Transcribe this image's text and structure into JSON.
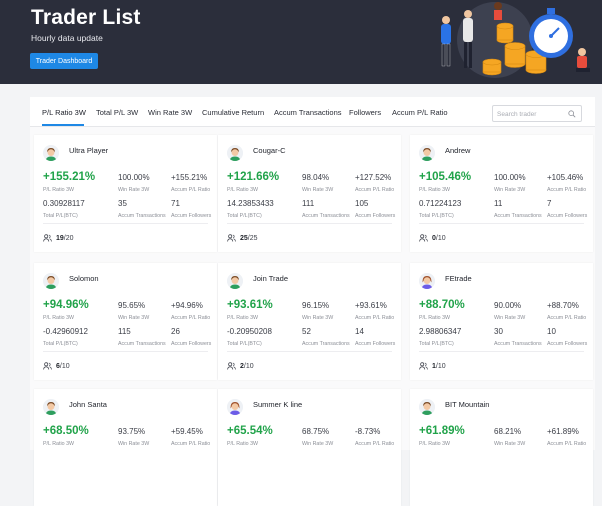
{
  "header": {
    "title": "Trader List",
    "subtitle": "Hourly data update",
    "dashboard_button": "Trader Dashboard"
  },
  "tabs": [
    {
      "label": "P/L Ratio 3W",
      "active": true
    },
    {
      "label": "Total P/L 3W"
    },
    {
      "label": "Win Rate 3W"
    },
    {
      "label": "Cumulative Return"
    },
    {
      "label": "Accum Transactions"
    },
    {
      "label": "Followers"
    },
    {
      "label": "Accum P/L Ratio"
    }
  ],
  "search": {
    "placeholder": "Search trader"
  },
  "labels": {
    "pl_ratio": "P/L Ratio 3W",
    "win_rate": "Win Rate 3W",
    "accum_pl": "Accum P/L Ratio",
    "total_pl": "Total P/L(BTC)",
    "accum_tx": "Accum Transactions",
    "accum_followers": "Accum Followers"
  },
  "colors": {
    "positive": "#21a34a",
    "accent": "#1e88e5",
    "hero_bg": "#2b2e3b"
  },
  "traders": [
    {
      "name": "Ultra Player",
      "pl_ratio": "+155.21%",
      "win_rate": "100.00%",
      "accum_pl": "+155.21%",
      "total_pl": "0.30928117",
      "transactions": "35",
      "followers": "71",
      "slots_used": "19",
      "slots_total": "/20",
      "avatar": "male"
    },
    {
      "name": "Cougar-C",
      "pl_ratio": "+121.66%",
      "win_rate": "98.04%",
      "accum_pl": "+127.52%",
      "total_pl": "14.23853433",
      "transactions": "111",
      "followers": "105",
      "slots_used": "25",
      "slots_total": "/25",
      "avatar": "male"
    },
    {
      "name": "Andrew",
      "pl_ratio": "+105.46%",
      "win_rate": "100.00%",
      "accum_pl": "+105.46%",
      "total_pl": "0.71224123",
      "transactions": "11",
      "followers": "7",
      "slots_used": "0",
      "slots_total": "/10",
      "avatar": "male"
    },
    {
      "name": "Solomon",
      "pl_ratio": "+94.96%",
      "win_rate": "95.65%",
      "accum_pl": "+94.96%",
      "total_pl": "-0.42960912",
      "transactions": "115",
      "followers": "26",
      "slots_used": "6",
      "slots_total": "/10",
      "avatar": "male"
    },
    {
      "name": "Join Trade",
      "pl_ratio": "+93.61%",
      "win_rate": "96.15%",
      "accum_pl": "+93.61%",
      "total_pl": "-0.20950208",
      "transactions": "52",
      "followers": "14",
      "slots_used": "2",
      "slots_total": "/10",
      "avatar": "male"
    },
    {
      "name": "FEtrade",
      "pl_ratio": "+88.70%",
      "win_rate": "90.00%",
      "accum_pl": "+88.70%",
      "total_pl": "2.98806347",
      "transactions": "30",
      "followers": "10",
      "slots_used": "1",
      "slots_total": "/10",
      "avatar": "female"
    },
    {
      "name": "John Santa",
      "pl_ratio": "+68.50%",
      "win_rate": "93.75%",
      "accum_pl": "+59.45%",
      "avatar": "male"
    },
    {
      "name": "Summer K line",
      "pl_ratio": "+65.54%",
      "win_rate": "68.75%",
      "accum_pl": "-8.73%",
      "avatar": "female"
    },
    {
      "name": "BIT Mountain",
      "pl_ratio": "+61.89%",
      "win_rate": "68.21%",
      "accum_pl": "+61.89%",
      "avatar": "male"
    }
  ]
}
